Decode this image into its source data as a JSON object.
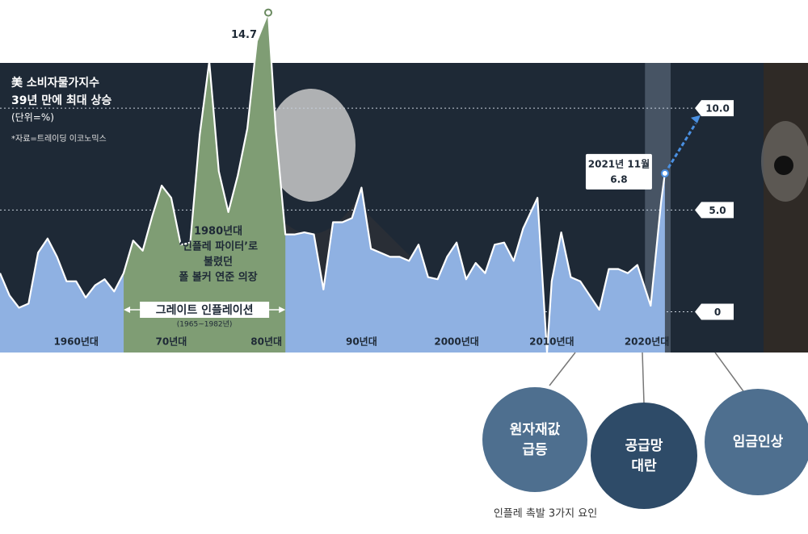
{
  "chart_data": {
    "type": "area",
    "title": "美 소비자물가지수",
    "subtitle": "39년 만에 최대 상승",
    "unit": "(단위=%)",
    "source": "*자료=트레이딩 이코노믹스",
    "x": [
      1952,
      1953,
      1954,
      1955,
      1956,
      1957,
      1958,
      1959,
      1960,
      1961,
      1962,
      1963,
      1964,
      1965,
      1966,
      1967,
      1968,
      1969,
      1970,
      1971,
      1972,
      1973,
      1974,
      1975,
      1976,
      1977,
      1978,
      1979,
      1980.2,
      1981,
      1982,
      1983,
      1984,
      1985,
      1986,
      1987,
      1988,
      1989,
      1990,
      1991,
      1992,
      1993,
      1994,
      1995,
      1996,
      1997,
      1998,
      1999,
      2000,
      2001,
      2002,
      2003,
      2004,
      2005,
      2006,
      2007,
      2008.5,
      2009.5,
      2010,
      2011,
      2012,
      2013,
      2014,
      2015,
      2016,
      2017,
      2018,
      2019,
      2020.4,
      2021.5,
      2021.9
    ],
    "values": [
      1.9,
      0.8,
      0.2,
      0.4,
      2.9,
      3.6,
      2.7,
      1.5,
      1.5,
      0.7,
      1.3,
      1.6,
      1.0,
      1.9,
      3.5,
      3.0,
      4.7,
      6.2,
      5.6,
      3.3,
      3.4,
      8.7,
      12.3,
      6.9,
      4.9,
      6.7,
      9.0,
      13.3,
      14.7,
      8.9,
      3.8,
      3.8,
      3.9,
      3.8,
      1.1,
      4.4,
      4.4,
      4.6,
      6.1,
      3.1,
      2.9,
      2.7,
      2.7,
      2.5,
      3.3,
      1.7,
      1.6,
      2.7,
      3.4,
      1.6,
      2.4,
      1.9,
      3.3,
      3.4,
      2.5,
      4.1,
      5.6,
      -2.0,
      1.5,
      3.9,
      1.7,
      1.5,
      0.8,
      0.1,
      2.1,
      2.1,
      1.9,
      2.3,
      0.3,
      5.4,
      6.8
    ],
    "color": "#8fb1e2",
    "line_color": "#ffffff",
    "xlim": [
      1952,
      2022.5
    ],
    "ylim": [
      -2,
      15
    ],
    "xticks": [
      {
        "value": 1960,
        "label": "1960년대"
      },
      {
        "value": 1970,
        "label": "70년대"
      },
      {
        "value": 1980,
        "label": "80년대"
      },
      {
        "value": 1990,
        "label": "90년대"
      },
      {
        "value": 2000,
        "label": "2000년대"
      },
      {
        "value": 2010,
        "label": "2010년대"
      },
      {
        "value": 2020,
        "label": "2020년대"
      }
    ],
    "yticks": [
      {
        "value": 10,
        "label": "10.0"
      },
      {
        "value": 5,
        "label": "5.0"
      },
      0
    ],
    "grid": true,
    "highlight": {
      "label": "그레이트 인플레이션",
      "period": "(1965~1982년)",
      "range": [
        1965,
        1982
      ],
      "color": "#7f9d74"
    },
    "annotations": {
      "latest_date": "2021년 11월",
      "person": [
        "1980년대",
        "‘인플레 파이터’로",
        "불렸던",
        "폴 볼커 연준 의장"
      ]
    }
  },
  "factors": {
    "items": [
      [
        "원자재값",
        "급등"
      ],
      [
        "공급망",
        "대란"
      ],
      [
        "임금인상"
      ]
    ],
    "caption": "인플레 촉발 3가지 요인"
  }
}
